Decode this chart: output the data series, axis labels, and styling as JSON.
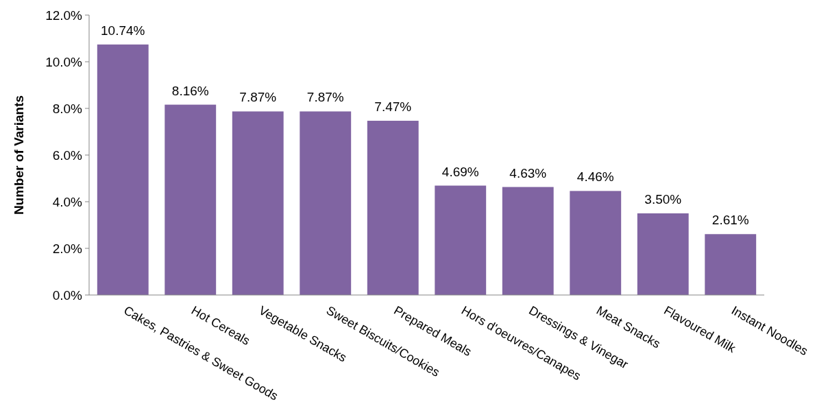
{
  "chart_data": {
    "type": "bar",
    "ylabel": "Number of Variants",
    "categories": [
      "Cakes, Pastries & Sweet Goods",
      "Hot Cereals",
      "Vegetable Snacks",
      "Sweet Biscuits/Cookies",
      "Prepared Meals",
      "Hors d'oeuvres/Canapes",
      "Dressings & Vinegar",
      "Meat Snacks",
      "Flavoured Milk",
      "Instant Noodles"
    ],
    "values": [
      10.74,
      8.16,
      7.87,
      7.87,
      7.47,
      4.69,
      4.63,
      4.46,
      3.5,
      2.61
    ],
    "value_labels": [
      "10.74%",
      "8.16%",
      "7.87%",
      "7.87%",
      "7.47%",
      "4.69%",
      "4.63%",
      "4.46%",
      "3.50%",
      "2.61%"
    ],
    "color": "#8064a2",
    "ylim": [
      0,
      12
    ],
    "yticks": [
      {
        "value": 0,
        "label": "0.0%"
      },
      {
        "value": 2,
        "label": "2.0%"
      },
      {
        "value": 4,
        "label": "4.0%"
      },
      {
        "value": 6,
        "label": "6.0%"
      },
      {
        "value": 8,
        "label": "8.0%"
      },
      {
        "value": 10,
        "label": "10.0%"
      },
      {
        "value": 12,
        "label": "12.0%"
      }
    ],
    "grid": false
  }
}
